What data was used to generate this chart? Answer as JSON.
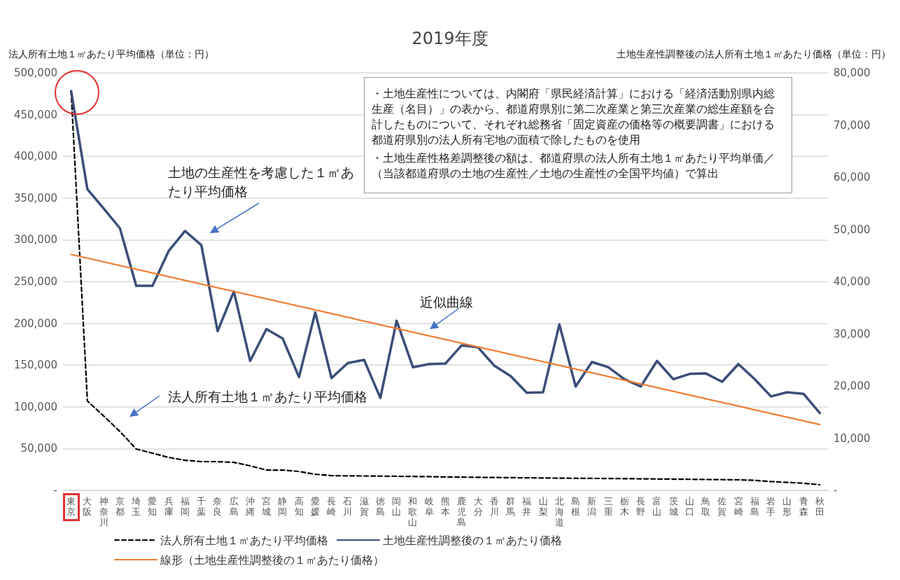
{
  "chart_data": {
    "type": "line",
    "title": "2019年度",
    "ylabel": "法人所有土地１㎡あたり平均価格（単位：円）",
    "y2label": "土地生産性調整後の法人所有土地１㎡あたり価格（単位：円）",
    "categories": [
      "東京",
      "大阪",
      "神奈川",
      "京都",
      "埼玉",
      "愛知",
      "兵庫",
      "福岡",
      "千葉",
      "奈良",
      "広島",
      "沖縄",
      "宮城",
      "静岡",
      "高知",
      "愛媛",
      "長崎",
      "石川",
      "滋賀",
      "徳島",
      "岡山",
      "和歌山",
      "岐阜",
      "熊本",
      "鹿児島",
      "大分",
      "香川",
      "群馬",
      "福井",
      "山梨",
      "北海道",
      "島根",
      "新潟",
      "三重",
      "栃木",
      "長野",
      "富山",
      "茨城",
      "山口",
      "鳥取",
      "佐賀",
      "宮崎",
      "福島",
      "岩手",
      "山形",
      "青森",
      "秋田"
    ],
    "series": [
      {
        "name": "法人所有土地１㎡あたり平均価格",
        "color": "#000000",
        "line_style": "dashed",
        "values": [
          478000,
          107000,
          89000,
          70500,
          49500,
          44500,
          39400,
          36000,
          34400,
          34400,
          33500,
          29400,
          24300,
          24300,
          22600,
          19300,
          17600,
          17300,
          17200,
          17000,
          16800,
          16600,
          16400,
          16000,
          15800,
          15600,
          15400,
          15200,
          15000,
          14800,
          14600,
          14400,
          14300,
          14200,
          14000,
          13800,
          13600,
          13400,
          13200,
          13000,
          12800,
          12600,
          12000,
          10500,
          9500,
          8500,
          6700
        ]
      },
      {
        "name": "土地生産性調整後の１㎡あたり価格",
        "color": "#3b4e7a",
        "axis": "y2",
        "line_style": "solid",
        "values": [
          76500,
          57700,
          54000,
          50200,
          39200,
          39200,
          45900,
          49700,
          47000,
          30500,
          38100,
          24800,
          30900,
          29100,
          21700,
          34100,
          21500,
          24400,
          25000,
          17700,
          32500,
          23600,
          24200,
          24300,
          27800,
          27400,
          23900,
          21900,
          18700,
          18800,
          31800,
          19900,
          24600,
          23600,
          21300,
          19900,
          24800,
          21300,
          22300,
          22400,
          20800,
          24200,
          21300,
          18000,
          18800,
          18500,
          14800
        ]
      },
      {
        "name": "線形（土地生産性調整後の１㎡あたり価格）",
        "color": "#ed7d31",
        "axis": "y2",
        "line_style": "solid",
        "x": [
          "東京",
          "秋田"
        ],
        "values": [
          45200,
          12600
        ]
      }
    ],
    "ylim": [
      0,
      500000
    ],
    "yticks": [
      {
        "value": 0,
        "label": "-"
      },
      {
        "value": 50000,
        "label": "50,000"
      },
      {
        "value": 100000,
        "label": "100,000"
      },
      {
        "value": 150000,
        "label": "150,000"
      },
      {
        "value": 200000,
        "label": "200,000"
      },
      {
        "value": 250000,
        "label": "250,000"
      },
      {
        "value": 300000,
        "label": "300,000"
      },
      {
        "value": 350000,
        "label": "350,000"
      },
      {
        "value": 400000,
        "label": "400,000"
      },
      {
        "value": 450000,
        "label": "450,000"
      },
      {
        "value": 500000,
        "label": "500,000"
      }
    ],
    "y2lim": [
      0,
      80000
    ],
    "y2ticks": [
      {
        "value": 0,
        "label": "-"
      },
      {
        "value": 10000,
        "label": "10,000"
      },
      {
        "value": 20000,
        "label": "20,000"
      },
      {
        "value": 30000,
        "label": "30,000"
      },
      {
        "value": 40000,
        "label": "40,000"
      },
      {
        "value": 50000,
        "label": "50,000"
      },
      {
        "value": 60000,
        "label": "60,000"
      },
      {
        "value": 70000,
        "label": "70,000"
      },
      {
        "value": 80000,
        "label": "80,000"
      }
    ],
    "grid": "y",
    "legend": "bottom",
    "marker": "none",
    "annotations": [
      "土地の生産性を考慮した１㎡あたり平均価格",
      "近似曲線",
      "法人所有土地１㎡あたり平均価格",
      "・土地生産性については、内閣府「県民経済計算」における「経済活動別県内総生産（名目）」の表から、都道府県別に第二次産業と第三次産業の総生産額を合計したものについて、それぞれ総務省「固定資産の価格等の概要調書」における都道府県別の法人所有宅地の面積で除したものを使用",
      "・土地生産性格差調整後の額は、都道府県の法人所有土地１㎡あたり平均単価／（当該都道府県の土地の生産性／土地の生産性の全国平均値）で算出"
    ]
  }
}
